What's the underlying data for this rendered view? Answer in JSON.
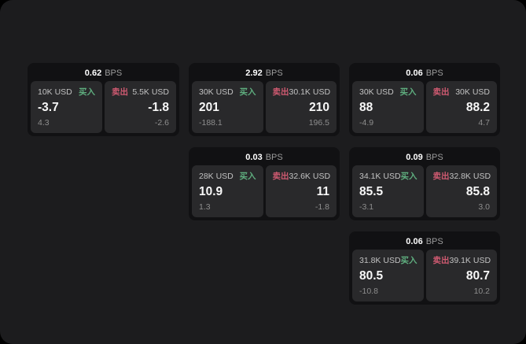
{
  "page": {
    "outer_bg": "#000000",
    "panel_bg": "#1c1c1e",
    "card_bg": "#111113",
    "subpanel_bg": "#29292b"
  },
  "labels": {
    "bps": "BPS",
    "buy": "买入",
    "sell": "卖出"
  },
  "colors": {
    "buy": "#5fae7f",
    "sell": "#cf5a71"
  },
  "cards": [
    {
      "row": 1,
      "col": 1,
      "bps": "0.62",
      "buy": {
        "amount": "10K USD",
        "value": "-3.7",
        "delta": "4.3"
      },
      "sell": {
        "amount": "5.5K USD",
        "value": "-1.8",
        "delta": "-2.6"
      }
    },
    {
      "row": 1,
      "col": 2,
      "bps": "2.92",
      "buy": {
        "amount": "30K USD",
        "value": "201",
        "delta": "-188.1"
      },
      "sell": {
        "amount": "30.1K USD",
        "value": "210",
        "delta": "196.5"
      }
    },
    {
      "row": 1,
      "col": 3,
      "bps": "0.06",
      "buy": {
        "amount": "30K USD",
        "value": "88",
        "delta": "-4.9"
      },
      "sell": {
        "amount": "30K USD",
        "value": "88.2",
        "delta": "4.7"
      }
    },
    {
      "row": 2,
      "col": 2,
      "bps": "0.03",
      "buy": {
        "amount": "28K USD",
        "value": "10.9",
        "delta": "1.3"
      },
      "sell": {
        "amount": "32.6K USD",
        "value": "11",
        "delta": "-1.8"
      }
    },
    {
      "row": 2,
      "col": 3,
      "bps": "0.09",
      "buy": {
        "amount": "34.1K USD",
        "value": "85.5",
        "delta": "-3.1"
      },
      "sell": {
        "amount": "32.8K USD",
        "value": "85.8",
        "delta": "3.0"
      }
    },
    {
      "row": 3,
      "col": 3,
      "bps": "0.06",
      "buy": {
        "amount": "31.8K USD",
        "value": "80.5",
        "delta": "-10.8"
      },
      "sell": {
        "amount": "39.1K USD",
        "value": "80.7",
        "delta": "10.2"
      }
    }
  ]
}
